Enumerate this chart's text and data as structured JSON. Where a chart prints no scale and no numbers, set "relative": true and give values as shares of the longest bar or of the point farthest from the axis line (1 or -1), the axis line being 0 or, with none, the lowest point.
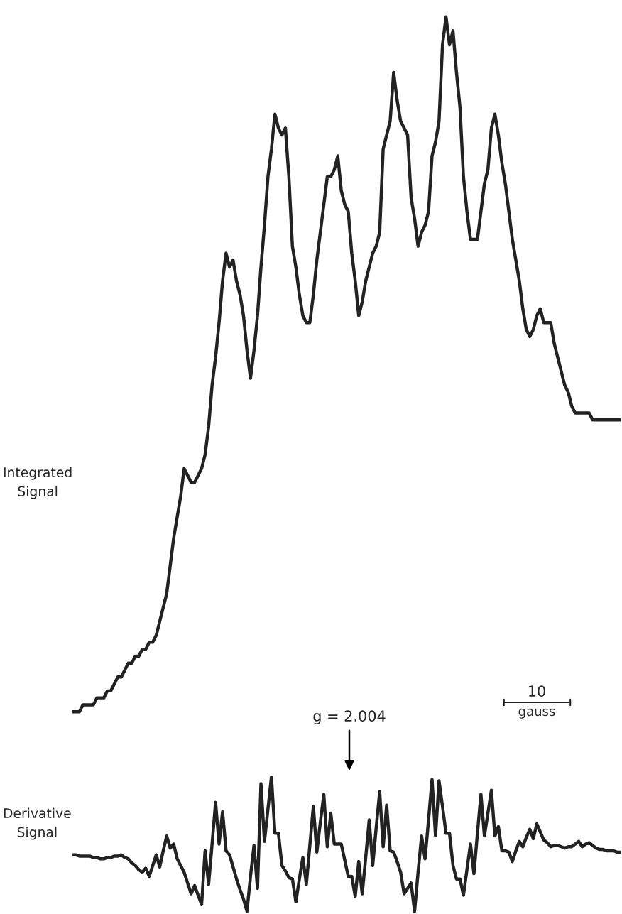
{
  "chart_data": [
    {
      "type": "line",
      "relative": true,
      "ylabel": "Integrated\nSignal",
      "tick_labels": false,
      "annotations": [
        "10",
        "gauss"
      ],
      "categories": [
        null,
        null,
        null,
        null,
        null,
        null,
        null,
        null,
        null,
        null,
        null,
        null,
        null,
        null,
        null,
        null,
        null,
        null,
        null,
        null,
        null,
        null,
        null,
        null,
        null,
        null,
        null,
        null,
        null,
        null,
        null,
        null,
        null,
        null,
        null,
        null,
        null,
        null,
        null,
        null,
        null,
        null,
        null,
        null,
        null,
        null,
        null,
        null,
        null,
        null,
        null,
        null,
        null,
        null,
        null,
        null,
        null,
        null,
        null,
        null,
        null,
        null,
        null,
        null,
        null,
        null,
        null,
        null,
        null,
        null,
        null,
        null,
        null,
        null,
        null,
        null,
        null,
        null,
        null,
        null,
        null,
        null,
        null,
        null,
        null,
        null,
        null,
        null,
        null,
        null,
        null,
        null,
        null,
        null,
        null,
        null,
        null,
        null,
        null,
        null,
        null,
        null,
        null,
        null,
        null,
        null,
        null,
        null,
        null,
        null,
        null,
        null,
        null,
        null,
        null,
        null,
        null,
        null,
        null,
        null,
        null,
        null,
        null,
        null,
        null,
        null,
        null,
        null,
        null,
        null,
        null,
        null,
        null,
        null,
        null,
        null,
        null,
        null,
        null,
        null,
        null,
        null,
        null,
        null,
        null,
        null,
        null,
        null,
        null,
        null,
        null,
        null,
        null,
        null,
        null,
        null,
        null,
        null
      ],
      "series": [
        {
          "color": "#222222",
          "values": [
            0.0,
            0.0,
            0.0,
            0.01,
            0.01,
            0.01,
            0.01,
            0.02,
            0.02,
            0.02,
            0.03,
            0.03,
            0.04,
            0.05,
            0.05,
            0.06,
            0.07,
            0.07,
            0.08,
            0.08,
            0.09,
            0.09,
            0.1,
            0.1,
            0.11,
            0.13,
            0.15,
            0.17,
            0.21,
            0.25,
            0.28,
            0.31,
            0.35,
            0.34,
            0.33,
            0.33,
            0.34,
            0.35,
            0.37,
            0.41,
            0.47,
            0.51,
            0.56,
            0.62,
            0.66,
            0.64,
            0.65,
            0.62,
            0.6,
            0.57,
            0.52,
            0.48,
            0.52,
            0.57,
            0.64,
            0.7,
            0.77,
            0.81,
            0.86,
            0.84,
            0.83,
            0.84,
            0.77,
            0.67,
            0.64,
            0.6,
            0.57,
            0.56,
            0.56,
            0.6,
            0.65,
            0.69,
            0.73,
            0.77,
            0.77,
            0.78,
            0.8,
            0.75,
            0.73,
            0.72,
            0.66,
            0.62,
            0.57,
            0.59,
            0.62,
            0.64,
            0.66,
            0.67,
            0.69,
            0.81,
            0.83,
            0.85,
            0.92,
            0.88,
            0.85,
            0.84,
            0.83,
            0.74,
            0.71,
            0.67,
            0.69,
            0.7,
            0.72,
            0.8,
            0.82,
            0.85,
            0.96,
            1.0,
            0.96,
            0.98,
            0.92,
            0.87,
            0.77,
            0.72,
            0.68,
            0.68,
            0.68,
            0.72,
            0.76,
            0.78,
            0.84,
            0.86,
            0.83,
            0.79,
            0.76,
            0.72,
            0.68,
            0.65,
            0.62,
            0.58,
            0.55,
            0.54,
            0.55,
            0.57,
            0.58,
            0.56,
            0.56,
            0.56,
            0.53,
            0.51,
            0.49,
            0.47,
            0.46,
            0.44,
            0.43,
            0.43,
            0.43,
            0.43,
            0.43,
            0.42,
            0.42,
            0.42,
            0.42,
            0.42,
            0.42,
            0.42,
            0.42,
            0.42
          ]
        }
      ]
    },
    {
      "type": "line",
      "relative": true,
      "ylabel": "Derivative\nSignal",
      "tick_labels": false,
      "annotations": [
        "g = 2.004"
      ],
      "categories": [
        null,
        null,
        null,
        null,
        null,
        null,
        null,
        null,
        null,
        null,
        null,
        null,
        null,
        null,
        null,
        null,
        null,
        null,
        null,
        null,
        null,
        null,
        null,
        null,
        null,
        null,
        null,
        null,
        null,
        null,
        null,
        null,
        null,
        null,
        null,
        null,
        null,
        null,
        null,
        null,
        null,
        null,
        null,
        null,
        null,
        null,
        null,
        null,
        null,
        null,
        null,
        null,
        null,
        null,
        null,
        null,
        null,
        null,
        null,
        null,
        null,
        null,
        null,
        null,
        null,
        null,
        null,
        null,
        null,
        null,
        null,
        null,
        null,
        null,
        null,
        null,
        null,
        null,
        null,
        null,
        null,
        null,
        null,
        null,
        null,
        null,
        null,
        null,
        null,
        null,
        null,
        null,
        null,
        null,
        null,
        null,
        null,
        null,
        null,
        null,
        null,
        null,
        null,
        null,
        null,
        null,
        null,
        null,
        null,
        null,
        null,
        null,
        null,
        null,
        null,
        null,
        null,
        null,
        null,
        null,
        null,
        null,
        null,
        null,
        null,
        null,
        null,
        null,
        null,
        null,
        null,
        null,
        null,
        null,
        null,
        null,
        null,
        null,
        null,
        null,
        null,
        null,
        null,
        null,
        null,
        null,
        null,
        null,
        null,
        null,
        null,
        null,
        null,
        null,
        null,
        null,
        null,
        null
      ],
      "series": [
        {
          "color": "#222222",
          "values": [
            0.42,
            0.42,
            0.41,
            0.41,
            0.41,
            0.41,
            0.4,
            0.4,
            0.39,
            0.39,
            0.4,
            0.4,
            0.41,
            0.41,
            0.42,
            0.4,
            0.39,
            0.36,
            0.34,
            0.31,
            0.29,
            0.32,
            0.26,
            0.34,
            0.42,
            0.33,
            0.45,
            0.56,
            0.47,
            0.5,
            0.39,
            0.34,
            0.29,
            0.21,
            0.13,
            0.19,
            0.12,
            0.05,
            0.45,
            0.2,
            0.5,
            0.81,
            0.5,
            0.74,
            0.45,
            0.42,
            0.33,
            0.24,
            0.16,
            0.09,
            0.0,
            0.26,
            0.49,
            0.17,
            0.95,
            0.52,
            0.76,
            1.0,
            0.58,
            0.58,
            0.34,
            0.3,
            0.25,
            0.24,
            0.07,
            0.24,
            0.4,
            0.2,
            0.49,
            0.78,
            0.44,
            0.66,
            0.87,
            0.48,
            0.73,
            0.5,
            0.5,
            0.5,
            0.38,
            0.26,
            0.26,
            0.11,
            0.37,
            0.13,
            0.4,
            0.68,
            0.34,
            0.62,
            0.89,
            0.48,
            0.79,
            0.45,
            0.44,
            0.37,
            0.29,
            0.13,
            0.17,
            0.21,
            0.0,
            0.29,
            0.56,
            0.39,
            0.68,
            0.98,
            0.56,
            0.97,
            0.78,
            0.58,
            0.58,
            0.34,
            0.24,
            0.24,
            0.12,
            0.31,
            0.5,
            0.28,
            0.58,
            0.87,
            0.56,
            0.73,
            0.9,
            0.56,
            0.63,
            0.45,
            0.45,
            0.44,
            0.37,
            0.45,
            0.52,
            0.48,
            0.55,
            0.61,
            0.54,
            0.65,
            0.59,
            0.53,
            0.51,
            0.48,
            0.49,
            0.49,
            0.48,
            0.47,
            0.48,
            0.48,
            0.5,
            0.52,
            0.48,
            0.5,
            0.51,
            0.49,
            0.47,
            0.46,
            0.46,
            0.45,
            0.45,
            0.45,
            0.44,
            0.44
          ]
        }
      ]
    }
  ]
}
